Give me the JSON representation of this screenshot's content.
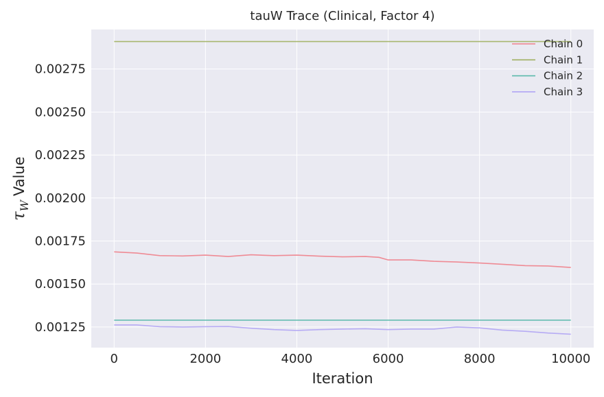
{
  "chart_data": {
    "type": "line",
    "title": "tauW Trace (Clinical, Factor 4)",
    "xlabel": "Iteration",
    "ylabel_symbol": "τ",
    "ylabel_subscript": "W",
    "ylabel_text": "Value",
    "xlim": [
      -500,
      10500
    ],
    "ylim": [
      0.00113,
      0.00298
    ],
    "xticks": [
      0,
      2000,
      4000,
      6000,
      8000,
      10000
    ],
    "xtick_labels": [
      "0",
      "2000",
      "4000",
      "6000",
      "8000",
      "10000"
    ],
    "yticks": [
      0.00125,
      0.0015,
      0.00175,
      0.002,
      0.00225,
      0.0025,
      0.00275
    ],
    "ytick_labels": [
      "0.00125",
      "0.00150",
      "0.00175",
      "0.00200",
      "0.00225",
      "0.00250",
      "0.00275"
    ],
    "grid": true,
    "legend_position": "top-right",
    "series": [
      {
        "name": "Chain 0",
        "color": "#f0808a",
        "x": [
          0,
          500,
          1000,
          1500,
          2000,
          2500,
          3000,
          3500,
          4000,
          4500,
          5000,
          5500,
          5800,
          6000,
          6500,
          7000,
          7500,
          8000,
          8500,
          9000,
          9500,
          10000
        ],
        "y": [
          0.001687,
          0.00168,
          0.001665,
          0.001663,
          0.001668,
          0.00166,
          0.00167,
          0.001665,
          0.001668,
          0.001662,
          0.001658,
          0.00166,
          0.001655,
          0.00164,
          0.00164,
          0.001632,
          0.001628,
          0.001622,
          0.001615,
          0.001607,
          0.001605,
          0.001596
        ]
      },
      {
        "name": "Chain 1",
        "color": "#a0b060",
        "x": [
          0,
          10000
        ],
        "y": [
          0.00291,
          0.00291
        ]
      },
      {
        "name": "Chain 2",
        "color": "#58b8aa",
        "x": [
          0,
          10000
        ],
        "y": [
          0.00129,
          0.00129
        ]
      },
      {
        "name": "Chain 3",
        "color": "#b0a4f4",
        "x": [
          0,
          500,
          1000,
          1500,
          2000,
          2500,
          3000,
          3500,
          4000,
          4500,
          5000,
          5500,
          6000,
          6500,
          7000,
          7500,
          8000,
          8500,
          9000,
          9500,
          10000
        ],
        "y": [
          0.001262,
          0.001262,
          0.001252,
          0.00125,
          0.001252,
          0.001253,
          0.001243,
          0.001235,
          0.00123,
          0.001235,
          0.001238,
          0.00124,
          0.001235,
          0.001238,
          0.001238,
          0.00125,
          0.001245,
          0.001232,
          0.001225,
          0.001215,
          0.001208
        ]
      }
    ]
  }
}
